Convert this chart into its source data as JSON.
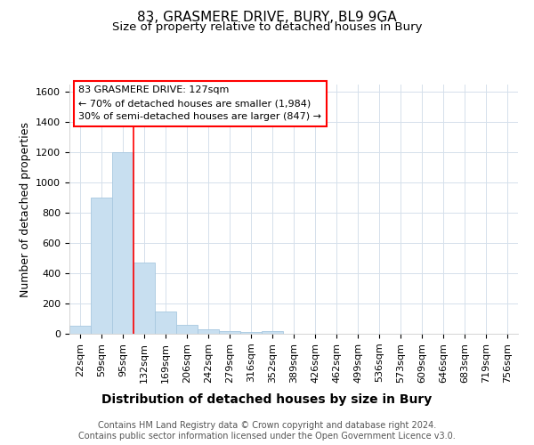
{
  "title": "83, GRASMERE DRIVE, BURY, BL9 9GA",
  "subtitle": "Size of property relative to detached houses in Bury",
  "xlabel": "Distribution of detached houses by size in Bury",
  "ylabel": "Number of detached properties",
  "bin_labels": [
    "22sqm",
    "59sqm",
    "95sqm",
    "132sqm",
    "169sqm",
    "206sqm",
    "242sqm",
    "279sqm",
    "316sqm",
    "352sqm",
    "389sqm",
    "426sqm",
    "462sqm",
    "499sqm",
    "536sqm",
    "573sqm",
    "609sqm",
    "646sqm",
    "683sqm",
    "719sqm",
    "756sqm"
  ],
  "bar_values": [
    55,
    900,
    1200,
    470,
    150,
    60,
    30,
    15,
    10,
    20,
    0,
    0,
    0,
    0,
    0,
    0,
    0,
    0,
    0,
    0,
    0
  ],
  "bar_color": "#c8dff0",
  "bar_edgecolor": "#a8c8e0",
  "red_line_x": 2.5,
  "annotation_text": "83 GRASMERE DRIVE: 127sqm\n← 70% of detached houses are smaller (1,984)\n30% of semi-detached houses are larger (847) →",
  "annotation_box_facecolor": "white",
  "annotation_box_edgecolor": "red",
  "red_line_color": "red",
  "ylim": [
    0,
    1650
  ],
  "yticks": [
    0,
    200,
    400,
    600,
    800,
    1000,
    1200,
    1400,
    1600
  ],
  "background_color": "#ffffff",
  "plot_bg_color": "#ffffff",
  "grid_color": "#d5e0eb",
  "footer": "Contains HM Land Registry data © Crown copyright and database right 2024.\nContains public sector information licensed under the Open Government Licence v3.0.",
  "title_fontsize": 11,
  "subtitle_fontsize": 9.5,
  "xlabel_fontsize": 10,
  "ylabel_fontsize": 9,
  "tick_fontsize": 8,
  "annotation_fontsize": 8,
  "footer_fontsize": 7
}
